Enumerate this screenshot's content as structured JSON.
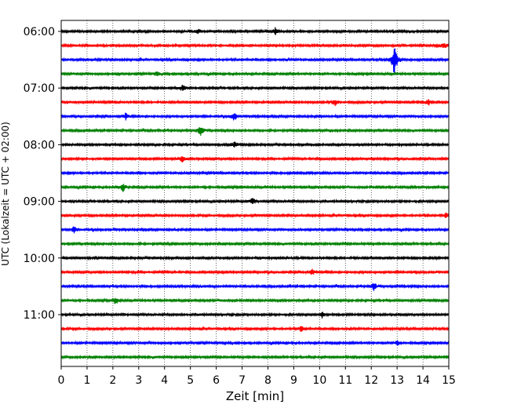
{
  "chart_data": {
    "type": "line",
    "title": "",
    "xlabel": "Zeit  [min]",
    "ylabel": "UTC (Lokalzeit = UTC + 02:00)",
    "xlim": [
      0,
      15
    ],
    "x_ticks": [
      "0",
      "1",
      "2",
      "3",
      "4",
      "5",
      "6",
      "7",
      "8",
      "9",
      "10",
      "11",
      "12",
      "13",
      "14",
      "15"
    ],
    "y_tick_labels": [
      "06:00",
      "07:00",
      "08:00",
      "09:00",
      "10:00",
      "11:00"
    ],
    "grid": {
      "x": true,
      "y": false
    },
    "trace_colors": [
      "#000000",
      "#ff0000",
      "#0000ff",
      "#008000"
    ],
    "traces_start": "06:00",
    "trace_interval_min": 15,
    "trace_count": 24,
    "events": [
      {
        "trace": 0,
        "minute": 8.3,
        "amp": 0.35
      },
      {
        "trace": 0,
        "minute": 5.3,
        "amp": 0.25
      },
      {
        "trace": 1,
        "minute": 14.8,
        "amp": 0.3
      },
      {
        "trace": 2,
        "minute": 12.9,
        "amp": 1.6
      },
      {
        "trace": 3,
        "minute": 3.7,
        "amp": 0.25
      },
      {
        "trace": 4,
        "minute": 4.7,
        "amp": 0.3
      },
      {
        "trace": 5,
        "minute": 14.2,
        "amp": 0.3
      },
      {
        "trace": 5,
        "minute": 10.6,
        "amp": 0.3
      },
      {
        "trace": 6,
        "minute": 6.7,
        "amp": 0.45
      },
      {
        "trace": 6,
        "minute": 2.5,
        "amp": 0.3
      },
      {
        "trace": 7,
        "minute": 5.4,
        "amp": 0.5
      },
      {
        "trace": 8,
        "minute": 6.7,
        "amp": 0.3
      },
      {
        "trace": 9,
        "minute": 4.7,
        "amp": 0.35
      },
      {
        "trace": 11,
        "minute": 2.4,
        "amp": 0.4
      },
      {
        "trace": 12,
        "minute": 7.4,
        "amp": 0.3
      },
      {
        "trace": 13,
        "minute": 14.9,
        "amp": 0.3
      },
      {
        "trace": 14,
        "minute": 0.5,
        "amp": 0.3
      },
      {
        "trace": 17,
        "minute": 9.7,
        "amp": 0.25
      },
      {
        "trace": 18,
        "minute": 12.1,
        "amp": 0.35
      },
      {
        "trace": 19,
        "minute": 2.1,
        "amp": 0.35
      },
      {
        "trace": 20,
        "minute": 10.1,
        "amp": 0.25
      },
      {
        "trace": 21,
        "minute": 9.3,
        "amp": 0.25
      },
      {
        "trace": 22,
        "minute": 13.0,
        "amp": 0.25
      }
    ]
  }
}
